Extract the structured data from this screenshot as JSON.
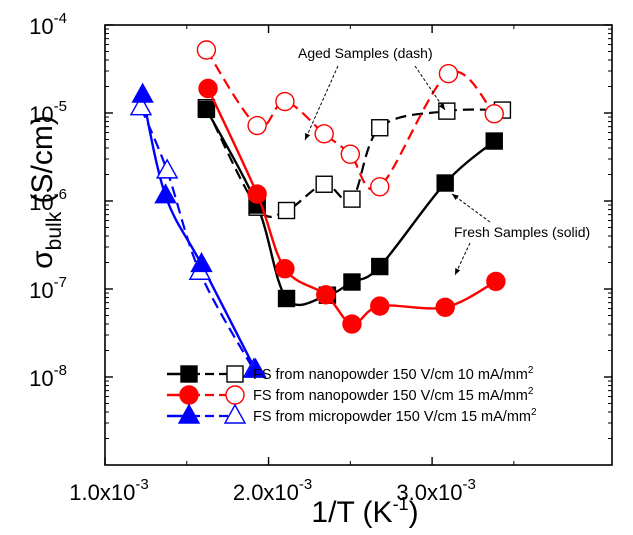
{
  "chart_data": {
    "type": "line",
    "title": "",
    "xlabel": "1/T (K",
    "xlabel_sup": "-1",
    "xlabel_close": ")",
    "ylabel_sigma": "σ",
    "ylabel_sub": "bulk",
    "ylabel_unit": " (S/cm)",
    "xlim": [
      0.001,
      0.0041
    ],
    "ylim": [
      1e-09,
      0.0001
    ],
    "yscale": "log",
    "grid": false,
    "legend_position": "bottom-right",
    "x_ticks": [
      {
        "value": 0.001,
        "mant": "1.0x10",
        "exp": "-3"
      },
      {
        "value": 0.002,
        "mant": "2.0x10",
        "exp": "-3"
      },
      {
        "value": 0.003,
        "mant": "3.0x10",
        "exp": "-3"
      }
    ],
    "y_ticks": [
      {
        "value": 1e-08,
        "mant": "10",
        "exp": "-8"
      },
      {
        "value": 1e-07,
        "mant": "10",
        "exp": "-7"
      },
      {
        "value": 1e-06,
        "mant": "10",
        "exp": "-6"
      },
      {
        "value": 1e-05,
        "mant": "10",
        "exp": "-5"
      },
      {
        "value": 0.0001,
        "mant": "10",
        "exp": "-4"
      }
    ],
    "series": [
      {
        "name": "FS from nanopowder 150 V/cm 10 mA/mm",
        "name_sup": "2",
        "color": "#000000",
        "marker": "square",
        "fresh": [
          [
            0.00162,
            1.1e-05
          ],
          [
            0.00193,
            9e-07
          ],
          [
            0.00211,
            7.8e-08
          ],
          [
            0.00236,
            8.5e-08
          ],
          [
            0.00251,
            1.2e-07
          ],
          [
            0.00268,
            1.8e-07
          ],
          [
            0.00308,
            1.6e-06
          ],
          [
            0.00338,
            4.8e-06
          ]
        ],
        "aged": [
          [
            0.00162,
            1.15e-05
          ],
          [
            0.00193,
            8.5e-07
          ],
          [
            0.00211,
            7.8e-07
          ],
          [
            0.00234,
            1.55e-06
          ],
          [
            0.00251,
            1.05e-06
          ],
          [
            0.00268,
            6.8e-06
          ],
          [
            0.00309,
            1.05e-05
          ],
          [
            0.00343,
            1.08e-05
          ]
        ]
      },
      {
        "name": "FS from nanopowder 150 V/cm 15 mA/mm",
        "name_sup": "2",
        "color": "#ff0000",
        "marker": "circle",
        "fresh": [
          [
            0.00163,
            1.9e-05
          ],
          [
            0.00193,
            1.2e-06
          ],
          [
            0.0021,
            1.7e-07
          ],
          [
            0.00235,
            8.6e-08
          ],
          [
            0.00251,
            4e-08
          ],
          [
            0.00268,
            6.4e-08
          ],
          [
            0.00308,
            6.2e-08
          ],
          [
            0.00339,
            1.22e-07
          ]
        ],
        "aged": [
          [
            0.00162,
            5.2e-05
          ],
          [
            0.00193,
            7.2e-06
          ],
          [
            0.0021,
            1.35e-05
          ],
          [
            0.00234,
            5.8e-06
          ],
          [
            0.0025,
            3.4e-06
          ],
          [
            0.00268,
            1.45e-06
          ],
          [
            0.0031,
            2.8e-05
          ],
          [
            0.00338,
            9.8e-06
          ]
        ]
      },
      {
        "name": "FS from micropowder 150 V/cm 15 mA/mm",
        "name_sup": "2",
        "color": "#0000ff",
        "marker": "triangle",
        "fresh": [
          [
            0.00123,
            1.6e-05
          ],
          [
            0.00137,
            1.15e-06
          ],
          [
            0.00159,
            1.9e-07
          ],
          [
            0.00192,
            1.2e-08
          ]
        ],
        "aged": [
          [
            0.00122,
            1.15e-05
          ],
          [
            0.00138,
            2.2e-06
          ],
          [
            0.00158,
            1.55e-07
          ],
          [
            0.00191,
            1.2e-08
          ]
        ]
      }
    ],
    "annotations": {
      "aged": "Aged Samples (dash)",
      "fresh": "Fresh Samples (solid)"
    }
  }
}
